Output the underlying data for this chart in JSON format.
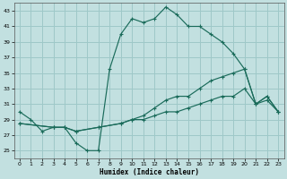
{
  "xlabel": "Humidex (Indice chaleur)",
  "bg_color": "#c2e0e0",
  "grid_color": "#9ec8c8",
  "line_color": "#1a6b5a",
  "xlim": [
    -0.5,
    23.5
  ],
  "ylim": [
    24,
    44
  ],
  "xticks": [
    0,
    1,
    2,
    3,
    4,
    5,
    6,
    7,
    8,
    9,
    10,
    11,
    12,
    13,
    14,
    15,
    16,
    17,
    18,
    19,
    20,
    21,
    22,
    23
  ],
  "yticks": [
    25,
    27,
    29,
    31,
    33,
    35,
    37,
    39,
    41,
    43
  ],
  "line1_x": [
    0,
    1,
    2,
    3,
    4,
    5,
    6,
    7,
    8,
    9,
    10,
    11,
    12,
    13,
    14,
    15,
    16,
    17,
    18,
    19,
    20,
    21,
    22,
    23
  ],
  "line1_y": [
    30,
    29,
    27.5,
    28,
    28,
    26,
    25,
    25,
    35.5,
    40,
    42,
    41.5,
    42,
    43.5,
    42.5,
    41,
    41,
    40,
    39,
    37.5,
    35.5,
    31,
    32,
    30
  ],
  "line2_x": [
    0,
    3,
    4,
    5,
    7,
    9,
    10,
    11,
    12,
    13,
    14,
    15,
    16,
    17,
    18,
    19,
    20,
    21,
    22,
    23
  ],
  "line2_y": [
    28.5,
    28,
    28,
    27.5,
    28,
    28.5,
    29,
    29,
    29.5,
    30,
    30,
    30.5,
    31,
    31.5,
    32,
    32,
    33,
    31,
    32,
    30
  ],
  "line3_x": [
    0,
    3,
    4,
    5,
    7,
    9,
    10,
    11,
    12,
    13,
    14,
    15,
    16,
    17,
    18,
    19,
    20,
    21,
    22,
    23
  ],
  "line3_y": [
    28.5,
    28,
    28,
    27.5,
    28,
    28.5,
    29,
    29.5,
    30.5,
    31.5,
    32,
    32,
    33,
    34,
    34.5,
    35,
    35.5,
    31,
    31.5,
    30
  ]
}
